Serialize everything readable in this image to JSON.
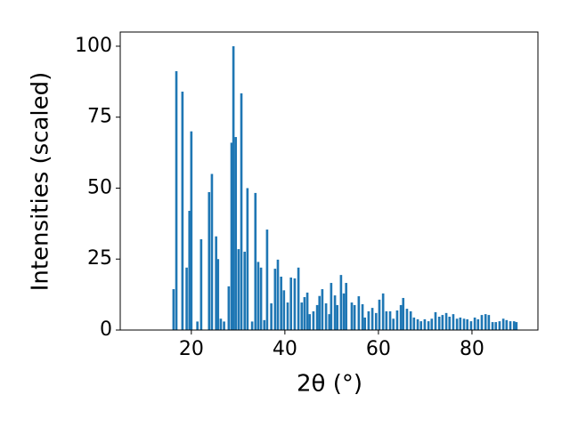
{
  "chart_data": {
    "type": "bar",
    "xlabel": "2θ (°)",
    "ylabel": "Intensities (scaled)",
    "x": [
      16.2,
      16.8,
      18.1,
      19.0,
      19.6,
      20.0,
      21.3,
      22.1,
      23.8,
      24.4,
      25.3,
      25.7,
      26.3,
      27.0,
      28.0,
      28.6,
      29.0,
      29.5,
      30.1,
      30.7,
      31.4,
      32.0,
      33.0,
      33.7,
      34.3,
      34.9,
      35.6,
      36.2,
      37.1,
      37.9,
      38.5,
      39.2,
      39.8,
      40.6,
      41.3,
      42.1,
      42.9,
      43.6,
      44.2,
      44.8,
      45.3,
      46.1,
      46.9,
      47.4,
      48.0,
      48.8,
      49.5,
      49.9,
      50.7,
      51.2,
      52.0,
      52.6,
      53.1,
      54.3,
      54.9,
      55.8,
      56.6,
      57.1,
      57.9,
      58.7,
      59.5,
      60.2,
      61.0,
      61.7,
      62.5,
      63.2,
      64.0,
      64.8,
      65.3,
      66.1,
      66.9,
      67.6,
      68.4,
      69.1,
      69.9,
      70.7,
      71.4,
      72.2,
      73.0,
      73.7,
      74.5,
      75.2,
      76.0,
      76.8,
      77.5,
      78.3,
      79.0,
      79.8,
      80.6,
      81.3,
      82.1,
      82.9,
      83.6,
      84.4,
      85.1,
      85.9,
      86.7,
      87.4,
      88.2,
      89.0,
      89.5
    ],
    "values": [
      14.4,
      91.2,
      84,
      22,
      42,
      70,
      3,
      32,
      48.6,
      55,
      33,
      25,
      4,
      3,
      15.4,
      66,
      100,
      68,
      28.5,
      83.4,
      27.6,
      50,
      3,
      48.3,
      24,
      22,
      3.5,
      35.4,
      9.4,
      21.6,
      24.8,
      18.8,
      14,
      9.7,
      18.5,
      18.2,
      22,
      9.7,
      11.6,
      13.2,
      5.6,
      6.6,
      8.8,
      12,
      14.4,
      9.4,
      5.6,
      16.6,
      12.2,
      8.8,
      19.4,
      12.9,
      16.6,
      9.7,
      8.8,
      11.9,
      9.1,
      4.4,
      6.6,
      7.8,
      6,
      10.7,
      12.9,
      6.6,
      6.6,
      4,
      6.9,
      8.8,
      11.3,
      7.5,
      6.6,
      4.4,
      3.8,
      3.1,
      3.8,
      3.1,
      4,
      6.3,
      4.7,
      5.3,
      6,
      4.7,
      5.6,
      4,
      4.4,
      4,
      3.8,
      3.1,
      4.4,
      3.8,
      5.3,
      5.6,
      5.3,
      2.8,
      2.8,
      3.1,
      4,
      3.5,
      3.1,
      3.1,
      2.8
    ],
    "color": "#1f77b4",
    "xlim": [
      4.8,
      94.1
    ],
    "ylim": [
      0,
      105
    ],
    "xticks": [
      20,
      40,
      60,
      80
    ],
    "yticks": [
      0,
      25,
      50,
      75,
      100
    ]
  }
}
